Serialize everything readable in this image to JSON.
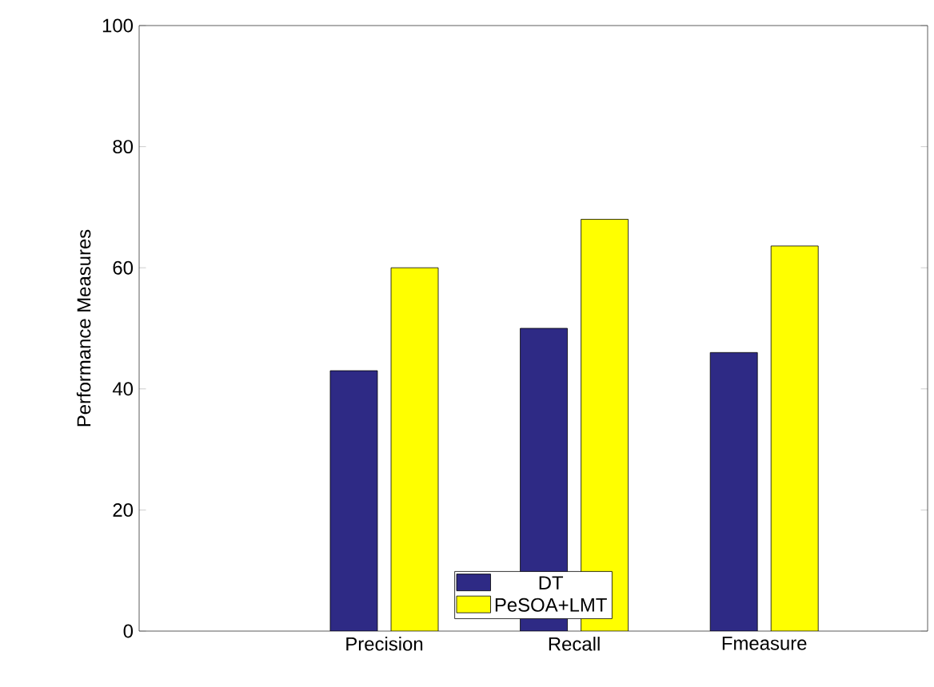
{
  "chart_data": {
    "type": "bar",
    "ylabel": "Performance Measures",
    "categories": [
      "Precision",
      "Recall",
      "Fmeasure"
    ],
    "series": [
      {
        "name": "DT",
        "color": "#2e2a85",
        "values": [
          43,
          50,
          46
        ]
      },
      {
        "name": "PeSOA+LMT",
        "color": "#ffff00",
        "values": [
          60,
          68,
          63.6
        ]
      }
    ],
    "ylim": [
      0,
      100
    ],
    "yticks": [
      0,
      20,
      40,
      60,
      80,
      100
    ],
    "legend": "bottom"
  }
}
